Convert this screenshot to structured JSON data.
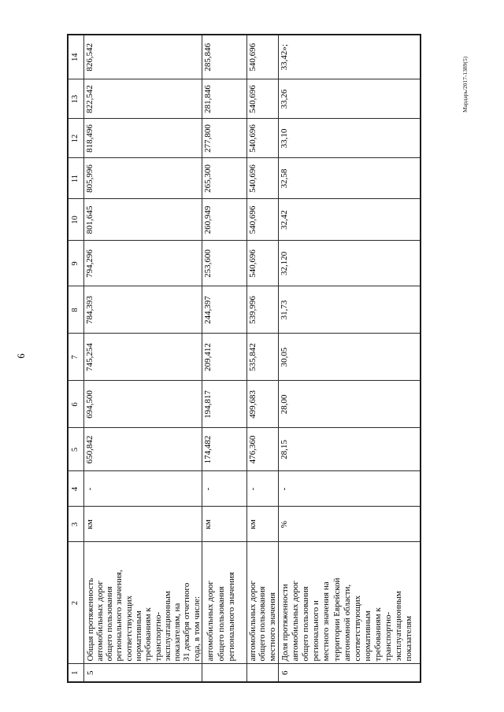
{
  "page": {
    "number": "6",
    "footer_code": "Мардарь/2017-1389(5)"
  },
  "table": {
    "header": [
      "1",
      "2",
      "3",
      "4",
      "5",
      "6",
      "7",
      "8",
      "9",
      "10",
      "11",
      "12",
      "13",
      "14"
    ],
    "rows": [
      {
        "num": "5",
        "name": "Общая протяженность\nавтомобильных дорог\nобщего пользования\nрегионального значения,\nсоответствующих\nнормативным\nтребованиям к\nтранспортно-\nэксплуатационным\nпоказателям, на\n31 декабря отчетного\nгода, в том числе:",
        "unit": "км",
        "col4": "-",
        "values": [
          "650,842",
          "694,500",
          "745,254",
          "784,393",
          "794,296",
          "801,645",
          "805,996",
          "818,496",
          "822,542",
          "826,542"
        ]
      },
      {
        "num": "",
        "name": "автомобильных дорог\nобщего пользования\nрегионального значения",
        "unit": "км",
        "col4": "-",
        "values": [
          "174,482",
          "194,817",
          "209,412",
          "244,397",
          "253,600",
          "260,949",
          "265,300",
          "277,800",
          "281,846",
          "285,846"
        ]
      },
      {
        "num": "",
        "name": "автомобильных дорог\nобщего пользования\nместного значения",
        "unit": "км",
        "col4": "-",
        "values": [
          "476,360",
          "499,683",
          "535,842",
          "539,996",
          "540,696",
          "540,696",
          "540,696",
          "540,696",
          "540,696",
          "540,696"
        ]
      },
      {
        "num": "6",
        "name": "Доля протяженности\nавтомобильных дорог\nобщего пользования\nрегионального и\nместного значения на\nтерритории Еврейской\nавтономной области,\nсоответствующих\nнормативным\nтребованиям к\nтранспортно-\nэксплуатационным\nпоказателям",
        "unit": "%",
        "col4": "-",
        "values": [
          "28,15",
          "28,00",
          "30,05",
          "31,73",
          "32,120",
          "32,42",
          "32,58",
          "33,10",
          "33,26",
          "33,42»;"
        ]
      }
    ]
  }
}
